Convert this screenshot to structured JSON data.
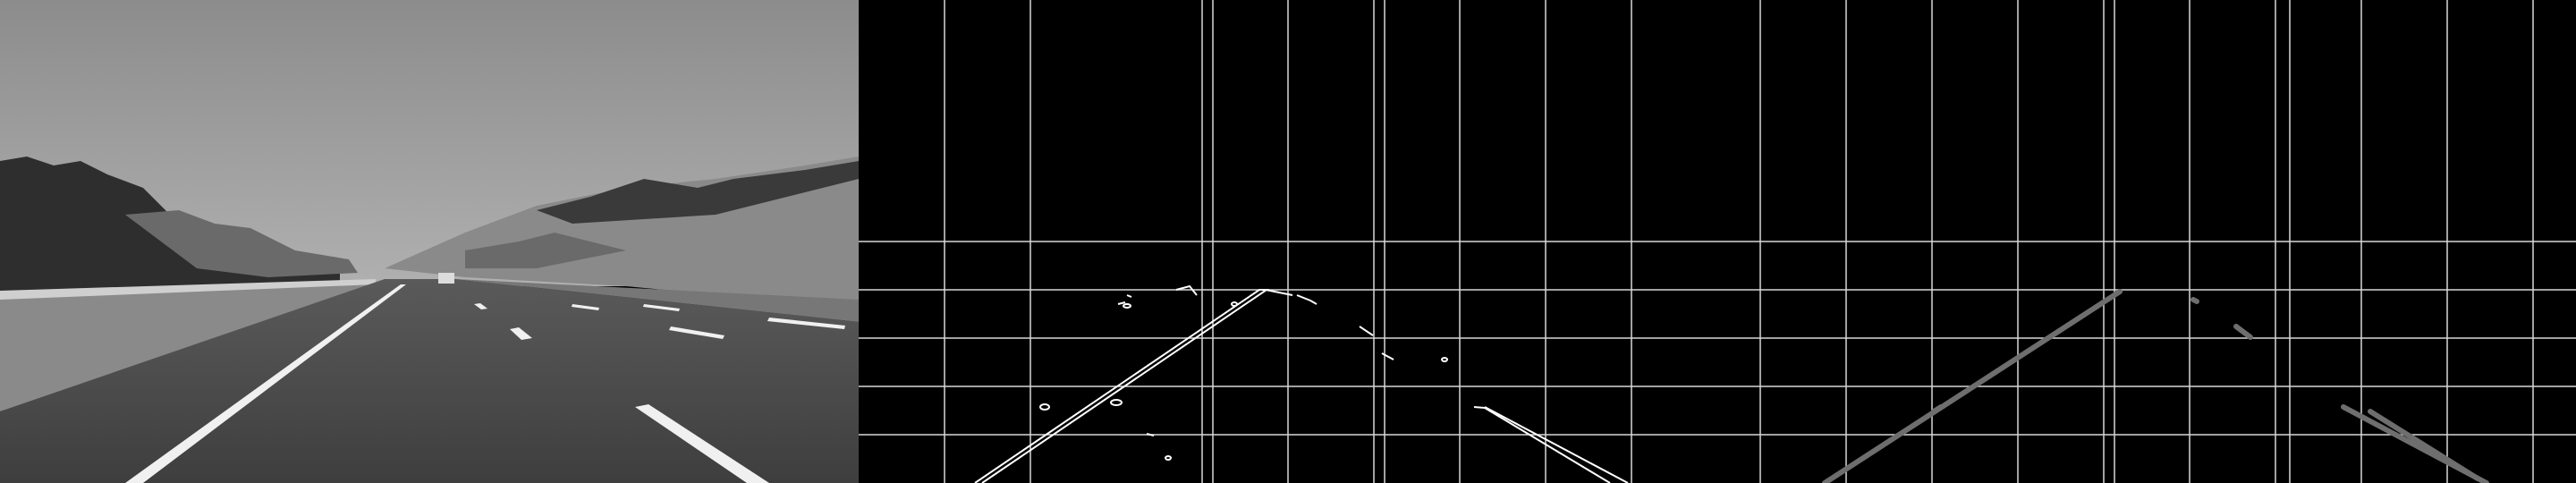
{
  "panels": [
    {
      "id": "grayscale-road-photo",
      "kind": "image",
      "description_hidden": true
    },
    {
      "id": "canny-edges",
      "kind": "image"
    },
    {
      "id": "hough-lines",
      "kind": "image"
    }
  ],
  "colors": {
    "background": "#000000",
    "sky": "#9a9a9a",
    "road": "#4a4a4a",
    "edge_white": "#ffffff",
    "hough_gray": "#6e6e6e"
  }
}
